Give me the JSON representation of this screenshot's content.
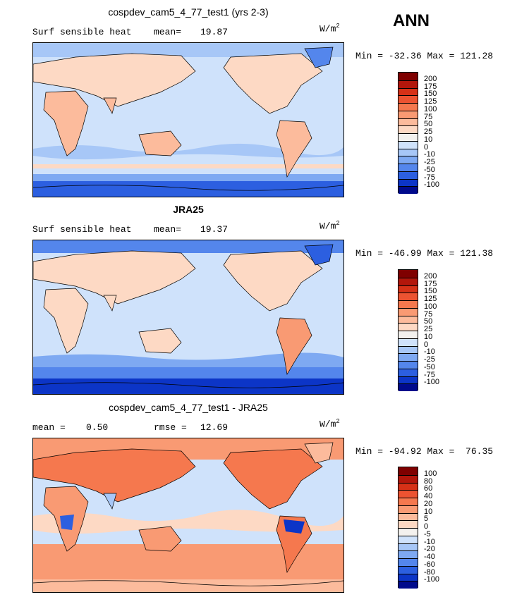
{
  "season": "ANN",
  "panels": [
    {
      "title": "cospdev_cam5_4_77_test1 (yrs 2-3)",
      "left_label": "Surf sensible heat",
      "stat_label": "mean=",
      "stat_value": "19.87",
      "units_base": "W/m",
      "units_exp": "2",
      "min_text": "Min = -32.36",
      "max_text": "Max = 121.28",
      "colorbar": {
        "labels": [
          "200",
          "175",
          "150",
          "125",
          "100",
          "75",
          "50",
          "25",
          "10",
          "0",
          "-10",
          "-25",
          "-50",
          "-75",
          "-100"
        ],
        "colors": [
          "#7f0000",
          "#b3160b",
          "#d63117",
          "#ec5331",
          "#f5784e",
          "#f99a73",
          "#fcbb9c",
          "#fdd9c4",
          "#f3f1ee",
          "#cfe2fb",
          "#a7c7f7",
          "#7ea9f2",
          "#5486ec",
          "#2c5fe0",
          "#0c35c7",
          "#000a8c"
        ]
      }
    },
    {
      "title": "JRA25",
      "left_label": "Surf sensible heat",
      "stat_label": "mean=",
      "stat_value": "19.37",
      "units_base": "W/m",
      "units_exp": "2",
      "min_text": "Min = -46.99",
      "max_text": "Max = 121.38",
      "colorbar": {
        "labels": [
          "200",
          "175",
          "150",
          "125",
          "100",
          "75",
          "50",
          "25",
          "10",
          "0",
          "-10",
          "-25",
          "-50",
          "-75",
          "-100"
        ],
        "colors": [
          "#7f0000",
          "#b3160b",
          "#d63117",
          "#ec5331",
          "#f5784e",
          "#f99a73",
          "#fcbb9c",
          "#fdd9c4",
          "#f3f1ee",
          "#cfe2fb",
          "#a7c7f7",
          "#7ea9f2",
          "#5486ec",
          "#2c5fe0",
          "#0c35c7",
          "#000a8c"
        ]
      }
    },
    {
      "title": "cospdev_cam5_4_77_test1 - JRA25",
      "left_label": "mean =",
      "left_value": "0.50",
      "stat_label": "rmse =",
      "stat_value": "12.69",
      "units_base": "W/m",
      "units_exp": "2",
      "min_text": "Min = -94.92",
      "max_text": "Max =  76.35",
      "colorbar": {
        "labels": [
          "100",
          "80",
          "60",
          "40",
          "20",
          "10",
          "5",
          "0",
          "-5",
          "-10",
          "-20",
          "-40",
          "-60",
          "-80",
          "-100"
        ],
        "colors": [
          "#7f0000",
          "#b3160b",
          "#d63117",
          "#ec5331",
          "#f5784e",
          "#f99a73",
          "#fcbb9c",
          "#fdd9c4",
          "#f3f1ee",
          "#cfe2fb",
          "#a7c7f7",
          "#7ea9f2",
          "#5486ec",
          "#2c5fe0",
          "#0c35c7",
          "#000a8c"
        ]
      }
    }
  ]
}
